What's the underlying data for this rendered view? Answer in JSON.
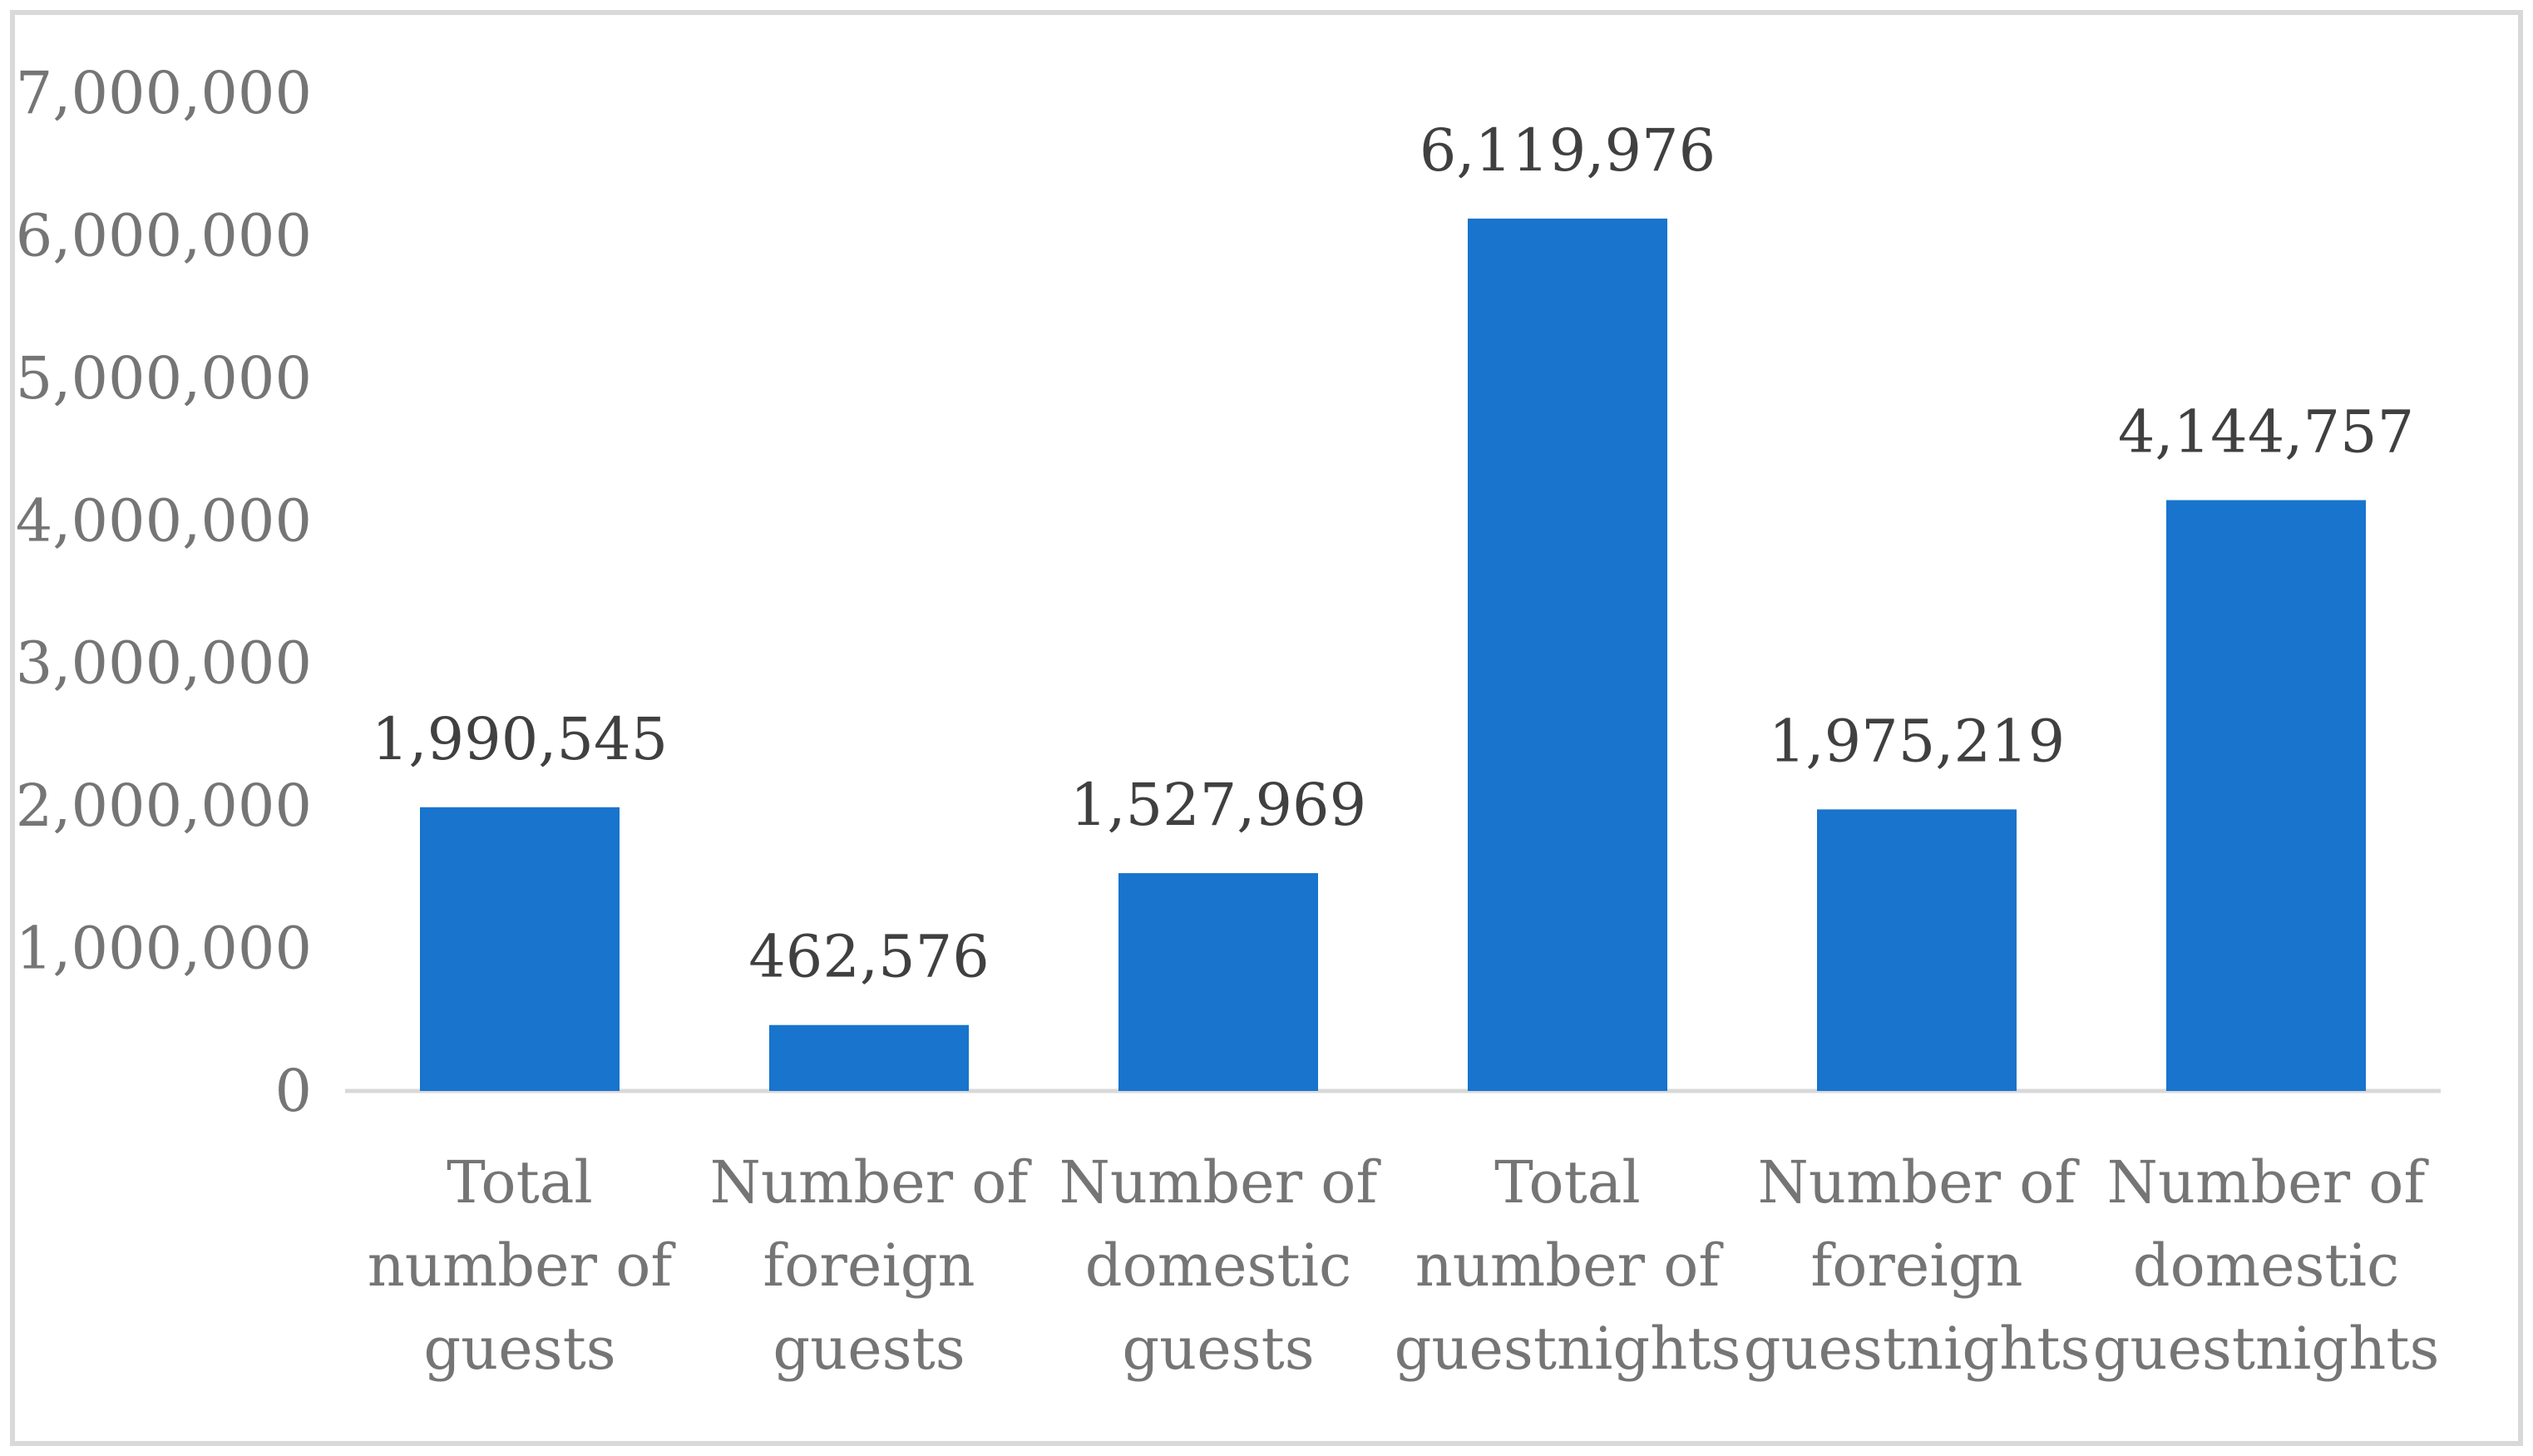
{
  "chart_data": {
    "type": "bar",
    "title": "",
    "xlabel": "",
    "ylabel": "",
    "categories": [
      [
        "Total",
        "number of",
        "guests"
      ],
      [
        "Number of",
        "foreign",
        "guests"
      ],
      [
        "Number of",
        "domestic",
        "guests"
      ],
      [
        "Total",
        "number of",
        "guestnights"
      ],
      [
        "Number of",
        "foreign",
        "guestnights"
      ],
      [
        "Number of",
        "domestic",
        "guestnights"
      ]
    ],
    "values": [
      1990545,
      462576,
      1527969,
      6119976,
      1975219,
      4144757
    ],
    "data_labels": [
      "1,990,545",
      "462,576",
      "1,527,969",
      "6,119,976",
      "1,975,219",
      "4,144,757"
    ],
    "ylim": [
      0,
      7000000
    ],
    "yticks": [
      0,
      1000000,
      2000000,
      3000000,
      4000000,
      5000000,
      6000000,
      7000000
    ],
    "ytick_labels": [
      "0",
      "1,000,000",
      "2,000,000",
      "3,000,000",
      "4,000,000",
      "5,000,000",
      "6,000,000",
      "7,000,000"
    ],
    "grid": false,
    "legend": "none",
    "colors": {
      "bar": "#1874cd",
      "axis": "#d9d9d9",
      "tick_text": "#757575",
      "label_text": "#404040",
      "frame": "#d9d9d9"
    }
  }
}
